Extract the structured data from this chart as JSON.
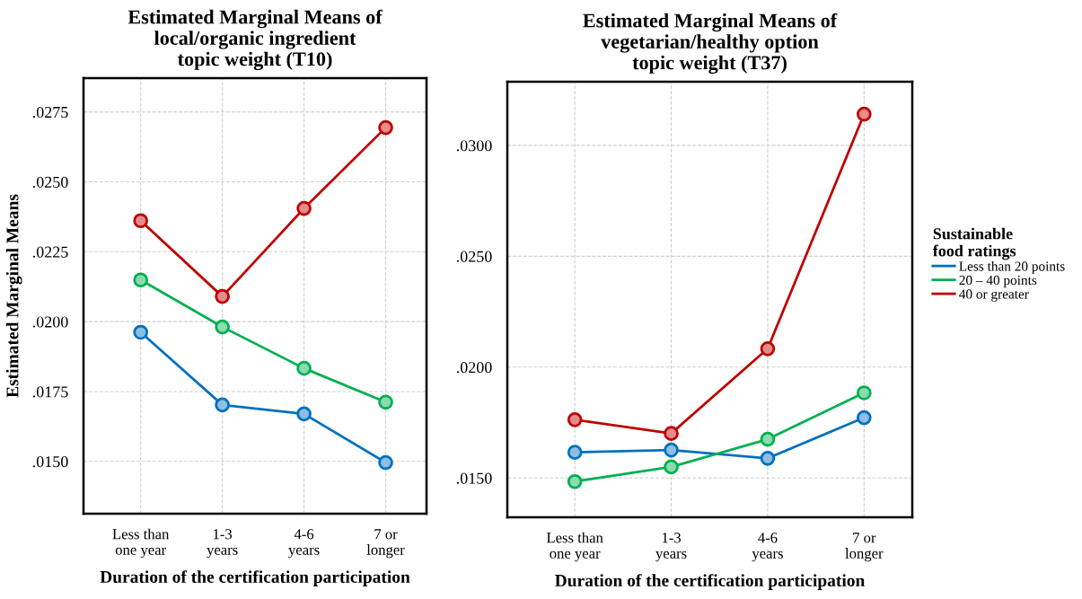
{
  "chart_data": [
    {
      "type": "line",
      "title": "Estimated Marginal Means of\nlocal/organic ingredient\ntopic weight (T10)",
      "xlabel": "Duration of the certification participation",
      "ylabel": "Estimated Marginal Means",
      "categories": [
        "Less than\none year",
        "1-3\nyears",
        "4-6\nyears",
        "7 or\nlonger"
      ],
      "series": [
        {
          "color": "#0070c0",
          "values": [
            0.01962,
            0.01702,
            0.0167,
            0.01496
          ]
        },
        {
          "color": "#00b050",
          "values": [
            0.02149,
            0.01981,
            0.01833,
            0.01712
          ]
        },
        {
          "color": "#c00000",
          "values": [
            0.02361,
            0.0209,
            0.02405,
            0.02694
          ]
        }
      ],
      "ylim": [
        0.01313,
        0.02871
      ],
      "yticks": [
        {
          "value": 0.015,
          "label": ".0150"
        },
        {
          "value": 0.0175,
          "label": ".0175"
        },
        {
          "value": 0.02,
          "label": ".0200"
        },
        {
          "value": 0.0225,
          "label": ".0225"
        },
        {
          "value": 0.025,
          "label": ".0250"
        },
        {
          "value": 0.0275,
          "label": ".0275"
        }
      ],
      "grid": true,
      "marker": "circle",
      "line_style": "solid"
    },
    {
      "type": "line",
      "title": "Estimated Marginal Means of\nvegetarian/healthy option\ntopic weight (T37)",
      "xlabel": "Duration of the certification participation",
      "legend_title": "Sustainable\nfood ratings",
      "categories": [
        "Less than\none year",
        "1-3\nyears",
        "4-6\nyears",
        "7 or\nlonger"
      ],
      "series": [
        {
          "name": "Less than 20 points",
          "color": "#0070c0",
          "values": [
            0.01616,
            0.01626,
            0.01589,
            0.01772
          ]
        },
        {
          "name": "20 – 40 points",
          "color": "#00b050",
          "values": [
            0.01484,
            0.0155,
            0.01675,
            0.01884
          ]
        },
        {
          "name": "40 or greater",
          "color": "#c00000",
          "values": [
            0.01763,
            0.01701,
            0.02083,
            0.03141
          ]
        }
      ],
      "ylim": [
        0.01323,
        0.03287
      ],
      "yticks": [
        {
          "value": 0.015,
          "label": ".0150"
        },
        {
          "value": 0.02,
          "label": ".0200"
        },
        {
          "value": 0.025,
          "label": ".0250"
        },
        {
          "value": 0.03,
          "label": ".0300"
        }
      ],
      "grid": true,
      "marker": "circle",
      "line_style": "solid",
      "legend": "right"
    }
  ]
}
